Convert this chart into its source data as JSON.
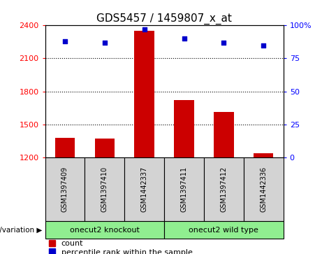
{
  "title": "GDS5457 / 1459807_x_at",
  "samples": [
    "GSM1397409",
    "GSM1397410",
    "GSM1442337",
    "GSM1397411",
    "GSM1397412",
    "GSM1442336"
  ],
  "counts": [
    1380,
    1375,
    2350,
    1720,
    1615,
    1240
  ],
  "percentiles": [
    88,
    87,
    97,
    90,
    87,
    85
  ],
  "group_labels": [
    "onecut2 knockout",
    "onecut2 wild type"
  ],
  "group_ranges": [
    [
      0,
      3
    ],
    [
      3,
      6
    ]
  ],
  "group_color": "#90ee90",
  "ylim_left": [
    1200,
    2400
  ],
  "ylim_right": [
    0,
    100
  ],
  "yticks_left": [
    1200,
    1500,
    1800,
    2100,
    2400
  ],
  "yticks_right": [
    0,
    25,
    50,
    75,
    100
  ],
  "bar_color": "#cc0000",
  "dot_color": "#0000cc",
  "bg_color": "#ffffff",
  "sample_box_color": "#d3d3d3",
  "genotype_label": "genotype/variation",
  "legend_count": "count",
  "legend_percentile": "percentile rank within the sample",
  "title_fontsize": 11,
  "tick_fontsize": 8,
  "sample_fontsize": 7,
  "group_fontsize": 8,
  "legend_fontsize": 8
}
